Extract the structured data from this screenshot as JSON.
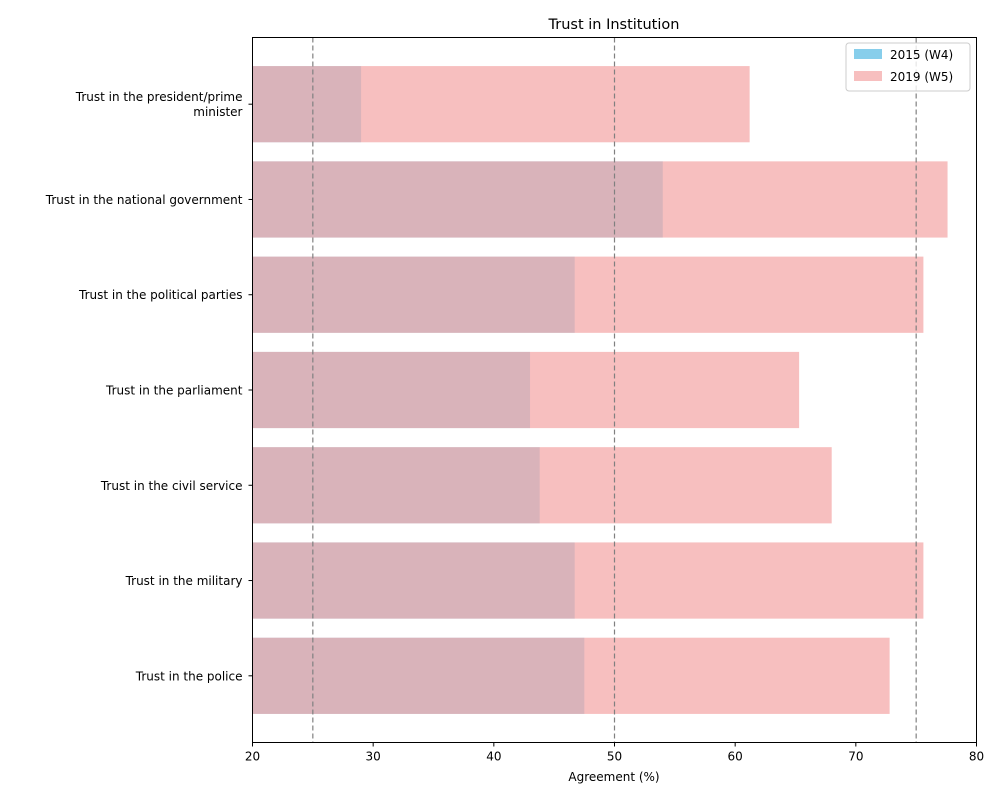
{
  "chart_data": {
    "type": "bar",
    "orientation": "horizontal",
    "title": "Trust in Institution",
    "xlabel": "Agreement (%)",
    "ylabel": "",
    "xlim": [
      20,
      80
    ],
    "xticks": [
      20,
      30,
      40,
      50,
      60,
      70,
      80
    ],
    "reference_lines": [
      25,
      50,
      75
    ],
    "grid": false,
    "legend_position": "top-right",
    "overlap": true,
    "categories": [
      [
        "Trust in the president/prime",
        "minister"
      ],
      [
        "Trust in the national government"
      ],
      [
        "Trust in the political parties"
      ],
      [
        "Trust in the parliament"
      ],
      [
        "Trust in the civil service"
      ],
      [
        "Trust in the military"
      ],
      [
        "Trust in the police"
      ]
    ],
    "series": [
      {
        "name": "2015 (W4)",
        "color": "#87ceeb",
        "opacity": 0.5,
        "values": [
          29.0,
          54.0,
          46.7,
          43.0,
          43.8,
          46.7,
          47.5
        ]
      },
      {
        "name": "2019 (W5)",
        "color": "#f08080",
        "opacity": 0.5,
        "values": [
          61.2,
          77.6,
          75.6,
          65.3,
          68.0,
          75.6,
          72.8
        ]
      }
    ]
  }
}
